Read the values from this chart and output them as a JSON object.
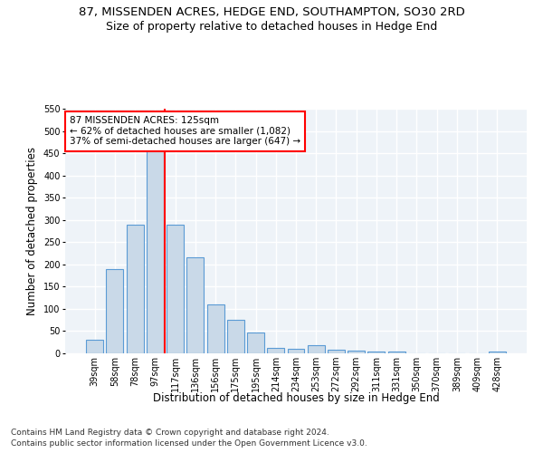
{
  "title1": "87, MISSENDEN ACRES, HEDGE END, SOUTHAMPTON, SO30 2RD",
  "title2": "Size of property relative to detached houses in Hedge End",
  "xlabel": "Distribution of detached houses by size in Hedge End",
  "ylabel": "Number of detached properties",
  "categories": [
    "39sqm",
    "58sqm",
    "78sqm",
    "97sqm",
    "117sqm",
    "136sqm",
    "156sqm",
    "175sqm",
    "195sqm",
    "214sqm",
    "234sqm",
    "253sqm",
    "272sqm",
    "292sqm",
    "311sqm",
    "331sqm",
    "350sqm",
    "370sqm",
    "389sqm",
    "409sqm",
    "428sqm"
  ],
  "values": [
    30,
    190,
    290,
    460,
    290,
    215,
    110,
    75,
    47,
    13,
    10,
    18,
    8,
    7,
    5,
    4,
    0,
    0,
    0,
    0,
    5
  ],
  "bar_color": "#c9d9e8",
  "bar_edge_color": "#5b9bd5",
  "vline_index": 4,
  "annotation_text": "87 MISSENDEN ACRES: 125sqm\n← 62% of detached houses are smaller (1,082)\n37% of semi-detached houses are larger (647) →",
  "annotation_box_color": "white",
  "annotation_box_edge": "red",
  "vline_color": "red",
  "ylim": [
    0,
    550
  ],
  "yticks": [
    0,
    50,
    100,
    150,
    200,
    250,
    300,
    350,
    400,
    450,
    500,
    550
  ],
  "footnote1": "Contains HM Land Registry data © Crown copyright and database right 2024.",
  "footnote2": "Contains public sector information licensed under the Open Government Licence v3.0.",
  "bg_color": "#eef3f8",
  "grid_color": "white",
  "title1_fontsize": 9.5,
  "title2_fontsize": 9,
  "axis_label_fontsize": 8.5,
  "tick_fontsize": 7,
  "annotation_fontsize": 7.5,
  "footnote_fontsize": 6.5
}
